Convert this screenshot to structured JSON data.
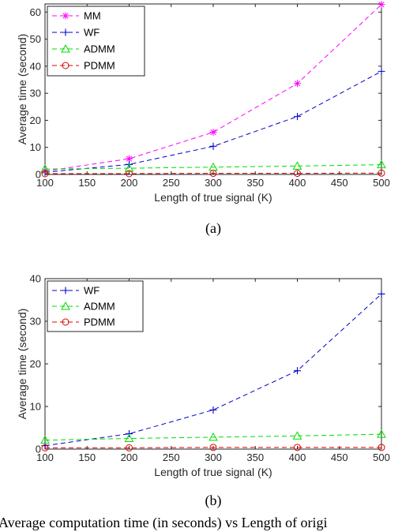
{
  "chart_data": [
    {
      "type": "line",
      "subplot_label": "(a)",
      "xlabel": "Length of true signal (K)",
      "ylabel": "Average time (second)",
      "xlim": [
        100,
        500
      ],
      "ylim": [
        0,
        63
      ],
      "xticks": [
        100,
        150,
        200,
        250,
        300,
        350,
        400,
        450,
        500
      ],
      "yticks": [
        0,
        10,
        20,
        30,
        40,
        50,
        60
      ],
      "grid": false,
      "legend_position": "top-left",
      "x": [
        100,
        200,
        300,
        400,
        500
      ],
      "series": [
        {
          "name": "MM",
          "color": "#ff00ff",
          "marker": "asterisk",
          "values": [
            1.2,
            5.8,
            15.6,
            33.6,
            62.8
          ]
        },
        {
          "name": "WF",
          "color": "#0000cc",
          "marker": "plus",
          "values": [
            0.8,
            3.7,
            10.4,
            21.4,
            38.1
          ]
        },
        {
          "name": "ADMM",
          "color": "#00dd00",
          "marker": "triangle",
          "values": [
            2.0,
            2.3,
            2.7,
            3.1,
            3.6
          ]
        },
        {
          "name": "PDMM",
          "color": "#dd0000",
          "marker": "circle",
          "values": [
            0.3,
            0.3,
            0.4,
            0.4,
            0.5
          ]
        }
      ]
    },
    {
      "type": "line",
      "subplot_label": "(b)",
      "xlabel": "Length of true signal (K)",
      "ylabel": "Average time (second)",
      "xlim": [
        100,
        500
      ],
      "ylim": [
        0,
        40
      ],
      "xticks": [
        100,
        150,
        200,
        250,
        300,
        350,
        400,
        450,
        500
      ],
      "yticks": [
        0,
        10,
        20,
        30,
        40
      ],
      "grid": false,
      "legend_position": "top-left",
      "x": [
        100,
        200,
        300,
        400,
        500
      ],
      "series": [
        {
          "name": "WF",
          "color": "#0000cc",
          "marker": "plus",
          "values": [
            0.8,
            3.6,
            9.2,
            18.4,
            36.4
          ]
        },
        {
          "name": "ADMM",
          "color": "#00dd00",
          "marker": "triangle",
          "values": [
            2.1,
            2.5,
            2.8,
            3.1,
            3.5
          ]
        },
        {
          "name": "PDMM",
          "color": "#dd0000",
          "marker": "circle",
          "values": [
            0.3,
            0.3,
            0.4,
            0.4,
            0.4
          ]
        }
      ]
    }
  ],
  "caption": "Average computation time (in seconds) vs Length of origi"
}
